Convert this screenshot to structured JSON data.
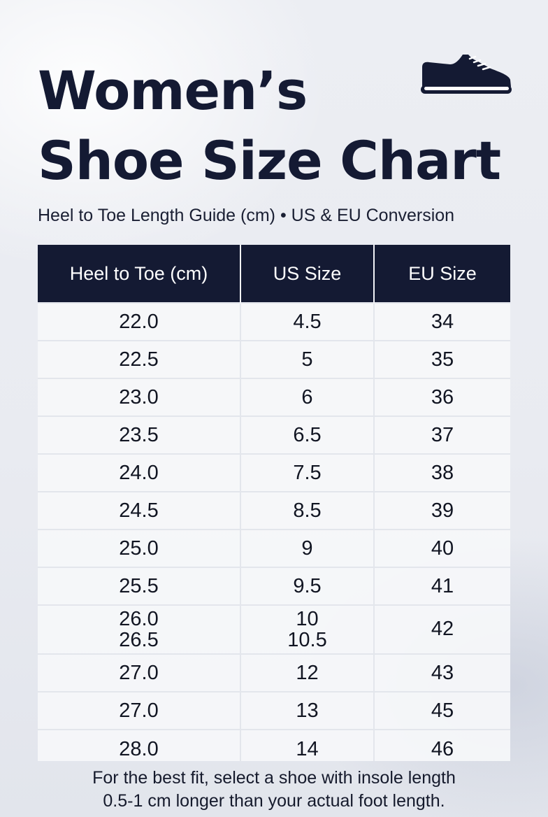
{
  "title": {
    "line1": "Women’s",
    "line2": "Shoe Size Chart"
  },
  "icons": {
    "header": "shoe-icon"
  },
  "colors": {
    "header_bg": "#141a33",
    "accent": "#141a33",
    "background": "#eceef3"
  },
  "subtitle": "Heel to Toe Length Guide (cm) • US & EU Conversion",
  "table": {
    "headers": [
      "Heel to Toe (cm)",
      "US Size",
      "EU Size"
    ],
    "rows": [
      [
        "22.0",
        "4.5",
        "34"
      ],
      [
        "22.5",
        "5",
        "35"
      ],
      [
        "23.0",
        "6",
        "36"
      ],
      [
        "23.5",
        "6.5",
        "37"
      ],
      [
        "24.0",
        "7.5",
        "38"
      ],
      [
        "24.5",
        "8.5",
        "39"
      ],
      [
        "25.0",
        "9",
        "40"
      ],
      [
        "25.5",
        "9.5",
        "41"
      ],
      [
        "26.0",
        "10",
        "42"
      ],
      [
        "26.5",
        "10.5",
        ""
      ],
      [
        "27.0",
        "12",
        "43"
      ],
      [
        "27.0",
        "13",
        "45"
      ],
      [
        "28.0",
        "14",
        "46"
      ]
    ]
  },
  "footnote": {
    "line1": "For the best fit, select a shoe with insole length",
    "line2": "0.5-1 cm longer than your actual foot length."
  }
}
